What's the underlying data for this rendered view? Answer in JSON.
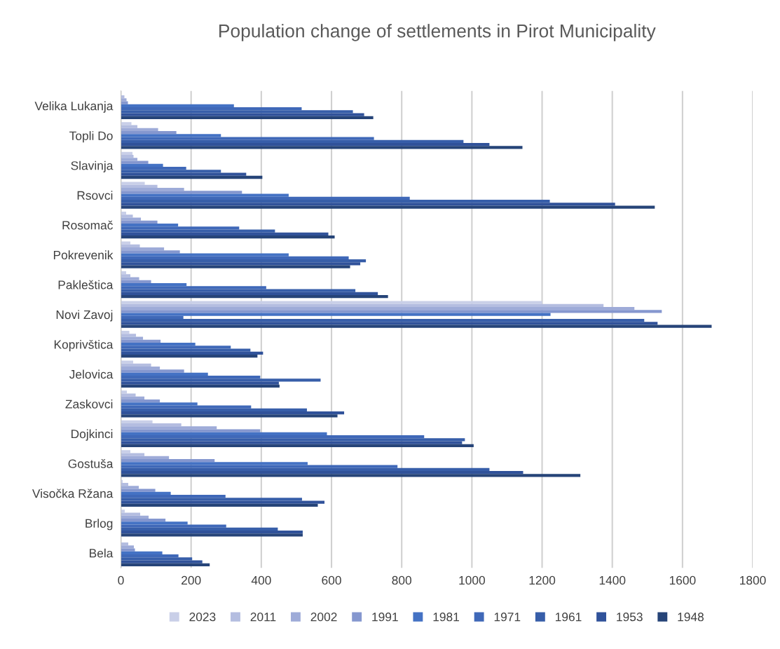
{
  "chart_data": {
    "type": "bar",
    "orientation": "horizontal",
    "title": "Population change of settlements in Pirot Municipality",
    "categories": [
      "Velika Lukanja",
      "Topli Do",
      "Slavinja",
      "Rsovci",
      "Rosomač",
      "Pokrevenik",
      "Pakleštica",
      "Novi Zavoj",
      "Koprivštica",
      "Jelovica",
      "Zaskovci",
      "Dojkinci",
      "Gostuša",
      "Visočka Ržana",
      "Brlog",
      "Bela"
    ],
    "series": [
      {
        "name": "2023",
        "color": "#c9cfe8",
        "values": [
          null,
          30,
          33,
          68,
          15,
          27,
          15,
          1200,
          24,
          35,
          17,
          90,
          27,
          5,
          11,
          null
        ]
      },
      {
        "name": "2011",
        "color": "#b4bde0",
        "values": [
          10,
          47,
          36,
          104,
          34,
          54,
          27,
          1375,
          43,
          86,
          42,
          172,
          67,
          21,
          55,
          21
        ]
      },
      {
        "name": "2002",
        "color": "#9eabd8",
        "values": [
          16,
          106,
          47,
          180,
          57,
          123,
          52,
          1463,
          63,
          111,
          67,
          273,
          137,
          51,
          79,
          37
        ]
      },
      {
        "name": "1991",
        "color": "#8597cf",
        "values": [
          20,
          158,
          78,
          345,
          104,
          168,
          86,
          1541,
          113,
          180,
          111,
          397,
          267,
          98,
          127,
          40
        ]
      },
      {
        "name": "1981",
        "color": "#4472c4",
        "values": [
          322,
          285,
          120,
          478,
          163,
          478,
          187,
          1224,
          212,
          248,
          218,
          587,
          532,
          142,
          190,
          118
        ]
      },
      {
        "name": "1971",
        "color": "#3f68b8",
        "values": [
          515,
          721,
          186,
          823,
          337,
          649,
          414,
          178,
          313,
          397,
          371,
          864,
          788,
          298,
          300,
          164
        ]
      },
      {
        "name": "1961",
        "color": "#375ea9",
        "values": [
          661,
          976,
          285,
          1222,
          439,
          698,
          668,
          1491,
          369,
          569,
          530,
          980,
          1050,
          516,
          447,
          203
        ]
      },
      {
        "name": "1953",
        "color": "#30529a",
        "values": [
          693,
          1050,
          357,
          1408,
          591,
          682,
          732,
          1529,
          405,
          450,
          636,
          972,
          1146,
          580,
          518,
          232
        ]
      },
      {
        "name": "1948",
        "color": "#264478",
        "values": [
          719,
          1144,
          403,
          1521,
          609,
          653,
          761,
          1683,
          389,
          452,
          617,
          1005,
          1309,
          561,
          518,
          253
        ]
      }
    ],
    "xlim": [
      0,
      1800
    ],
    "xticks": [
      0,
      200,
      400,
      600,
      800,
      1000,
      1200,
      1400,
      1600,
      1800
    ],
    "grid": "x",
    "legend": "bottom"
  }
}
